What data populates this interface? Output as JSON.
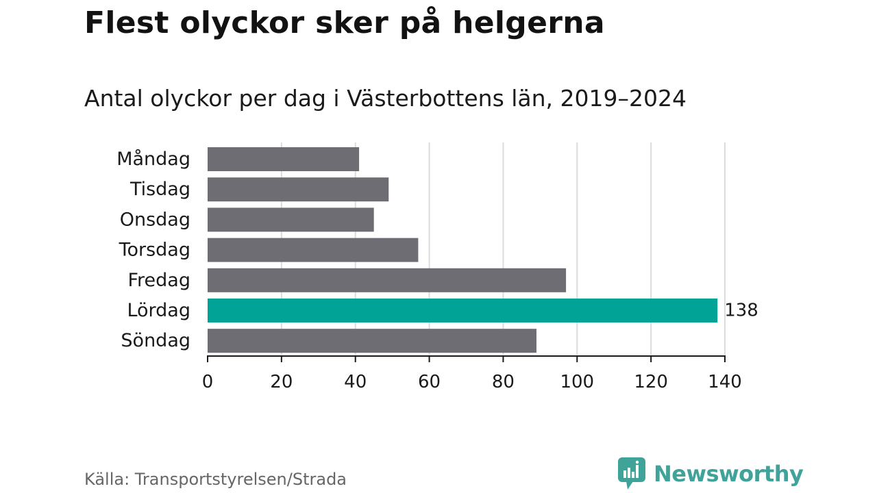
{
  "header": {
    "title": "Flest olyckor sker på helgerna",
    "subtitle": "Antal olyckor per dag i Västerbottens län, 2019–2024"
  },
  "chart_data": {
    "type": "bar",
    "orientation": "horizontal",
    "categories": [
      "Måndag",
      "Tisdag",
      "Onsdag",
      "Torsdag",
      "Fredag",
      "Lördag",
      "Söndag"
    ],
    "values": [
      41,
      49,
      45,
      57,
      97,
      138,
      89
    ],
    "highlight_index": 5,
    "data_labels": {
      "Lördag": "138"
    },
    "xlim": [
      0,
      140
    ],
    "x_ticks": [
      0,
      20,
      40,
      60,
      80,
      100,
      120,
      140
    ],
    "grid": "vertical",
    "xlabel": "",
    "ylabel": ""
  },
  "colors": {
    "bar": "#6e6d73",
    "highlight": "#00a396",
    "grid": "#dcdcdc",
    "axis": "#1a1a1a",
    "brand": "#3fa39a"
  },
  "footer": {
    "source": "Källa: Transportstyrelsen/Strada",
    "brand_name": "Newsworthy",
    "brand_icon": "newsworthy-logo-icon"
  }
}
